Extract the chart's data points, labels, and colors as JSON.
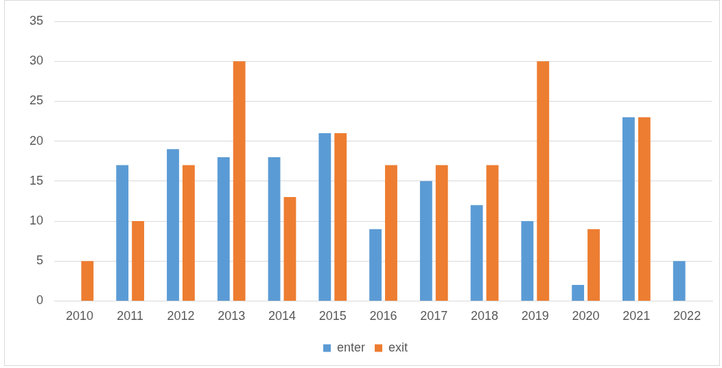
{
  "chart_data": {
    "type": "bar",
    "categories": [
      "2010",
      "2011",
      "2012",
      "2013",
      "2014",
      "2015",
      "2016",
      "2017",
      "2018",
      "2019",
      "2020",
      "2021",
      "2022"
    ],
    "series": [
      {
        "name": "enter",
        "color": "#5b9bd5",
        "values": [
          null,
          17,
          19,
          18,
          18,
          21,
          9,
          15,
          12,
          10,
          2,
          23,
          5
        ]
      },
      {
        "name": "exit",
        "color": "#ed7d31",
        "values": [
          5,
          10,
          17,
          30,
          13,
          21,
          17,
          17,
          17,
          30,
          9,
          23,
          null
        ]
      }
    ],
    "ylim": [
      0,
      35
    ],
    "yticks": [
      0,
      5,
      10,
      15,
      20,
      25,
      30,
      35
    ],
    "grid": "y",
    "legend": "bottom"
  }
}
